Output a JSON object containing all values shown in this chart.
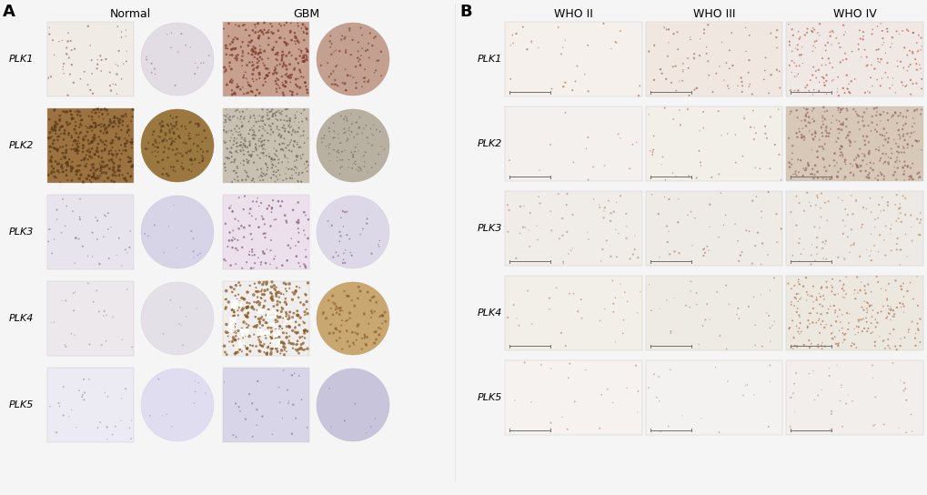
{
  "fig_width": 10.2,
  "fig_height": 5.44,
  "background_color": "#f5f5f5",
  "panel_a": {
    "label": "A",
    "title_normal": "Normal",
    "title_gbm": "GBM",
    "rows": [
      "PLK1",
      "PLK2",
      "PLK3",
      "PLK4",
      "PLK5"
    ],
    "cells": [
      {
        "plk": "PLK1",
        "normal_rect": {
          "bg": "#f0ebe5",
          "dots": "#9c7060",
          "n_dots": 60,
          "dot_size": 1.5
        },
        "normal_circle": {
          "bg": "#e2dde5",
          "edge": "#d0ccd5"
        },
        "gbm_rect": {
          "bg": "#c8a090",
          "dots": "#7a3c28",
          "n_dots": 300,
          "dot_size": 2.5
        },
        "gbm_circle": {
          "bg": "#c4a090",
          "edge": "#b09080"
        }
      },
      {
        "plk": "PLK2",
        "normal_rect": {
          "bg": "#a87c48",
          "dots": "#5a3a18",
          "n_dots": 400,
          "dot_size": 3.0
        },
        "normal_circle": {
          "bg": "#9a7840",
          "edge": "#8a6830"
        },
        "gbm_rect": {
          "bg": "#c8c0b0",
          "dots": "#706860",
          "n_dots": 400,
          "dot_size": 1.5
        },
        "gbm_circle": {
          "bg": "#b8b0a0",
          "edge": "#a8a090"
        }
      },
      {
        "plk": "PLK3",
        "normal_rect": {
          "bg": "#e8e4ee",
          "dots": "#8888b0",
          "n_dots": 40,
          "dot_size": 1.5
        },
        "normal_circle": {
          "bg": "#d8d4e8",
          "edge": "#c8c4d8"
        },
        "gbm_rect": {
          "bg": "#ece0ec",
          "dots": "#886080",
          "n_dots": 120,
          "dot_size": 2.0
        },
        "gbm_circle": {
          "bg": "#ddd8e8",
          "edge": "#ccc8d8"
        }
      },
      {
        "plk": "PLK4",
        "normal_rect": {
          "bg": "#ede8ec",
          "dots": "#a0a0b0",
          "n_dots": 25,
          "dot_size": 1.2
        },
        "normal_circle": {
          "bg": "#e4e0e8",
          "edge": "#d4d0d8"
        },
        "gbm_rect": {
          "bg": "#f0eeec",
          "dots": "#8c5c28",
          "n_dots": 350,
          "dot_size": 3.5
        },
        "gbm_circle": {
          "bg": "#c8a870",
          "edge": "#b89060"
        }
      },
      {
        "plk": "PLK5",
        "normal_rect": {
          "bg": "#eceaf2",
          "dots": "#9898b8",
          "n_dots": 30,
          "dot_size": 1.2
        },
        "normal_circle": {
          "bg": "#e0ddf0",
          "edge": "#d4d0e8"
        },
        "gbm_rect": {
          "bg": "#d8d5e8",
          "dots": "#8880a8",
          "n_dots": 30,
          "dot_size": 1.5
        },
        "gbm_circle": {
          "bg": "#c8c4dc",
          "edge": "#b8b4cc"
        }
      }
    ]
  },
  "panel_b": {
    "label": "B",
    "columns": [
      "WHO II",
      "WHO III",
      "WHO IV"
    ],
    "rows": [
      "PLK1",
      "PLK2",
      "PLK3",
      "PLK4",
      "PLK5"
    ],
    "cells": [
      [
        {
          "bg": "#f5f0ec",
          "dots": "#b07858",
          "n_dots": 30,
          "dot_size": 1.5
        },
        {
          "bg": "#f0e8e0",
          "dots": "#a07060",
          "n_dots": 80,
          "dot_size": 1.5
        },
        {
          "bg": "#f0e8e4",
          "dots": "#b86858",
          "n_dots": 200,
          "dot_size": 1.5
        }
      ],
      [
        {
          "bg": "#f4f0ee",
          "dots": "#c09080",
          "n_dots": 15,
          "dot_size": 1.2
        },
        {
          "bg": "#f2eee8",
          "dots": "#b08070",
          "n_dots": 50,
          "dot_size": 1.2
        },
        {
          "bg": "#d8c8b8",
          "dots": "#987060",
          "n_dots": 350,
          "dot_size": 2.0
        }
      ],
      [
        {
          "bg": "#f0ece8",
          "dots": "#c09888",
          "n_dots": 60,
          "dot_size": 1.5
        },
        {
          "bg": "#eeeae6",
          "dots": "#b08878",
          "n_dots": 50,
          "dot_size": 1.5
        },
        {
          "bg": "#edeae6",
          "dots": "#c09878",
          "n_dots": 120,
          "dot_size": 1.5
        }
      ],
      [
        {
          "bg": "#f2eee8",
          "dots": "#c08870",
          "n_dots": 30,
          "dot_size": 1.2
        },
        {
          "bg": "#eeeae4",
          "dots": "#b09070",
          "n_dots": 40,
          "dot_size": 1.2
        },
        {
          "bg": "#ece8e0",
          "dots": "#b07858",
          "n_dots": 250,
          "dot_size": 1.5
        }
      ],
      [
        {
          "bg": "#f5f2f0",
          "dots": "#c09888",
          "n_dots": 20,
          "dot_size": 1.2
        },
        {
          "bg": "#f4f2f0",
          "dots": "#c09888",
          "n_dots": 20,
          "dot_size": 1.2
        },
        {
          "bg": "#f2eeec",
          "dots": "#c09888",
          "n_dots": 40,
          "dot_size": 1.2
        }
      ]
    ]
  }
}
